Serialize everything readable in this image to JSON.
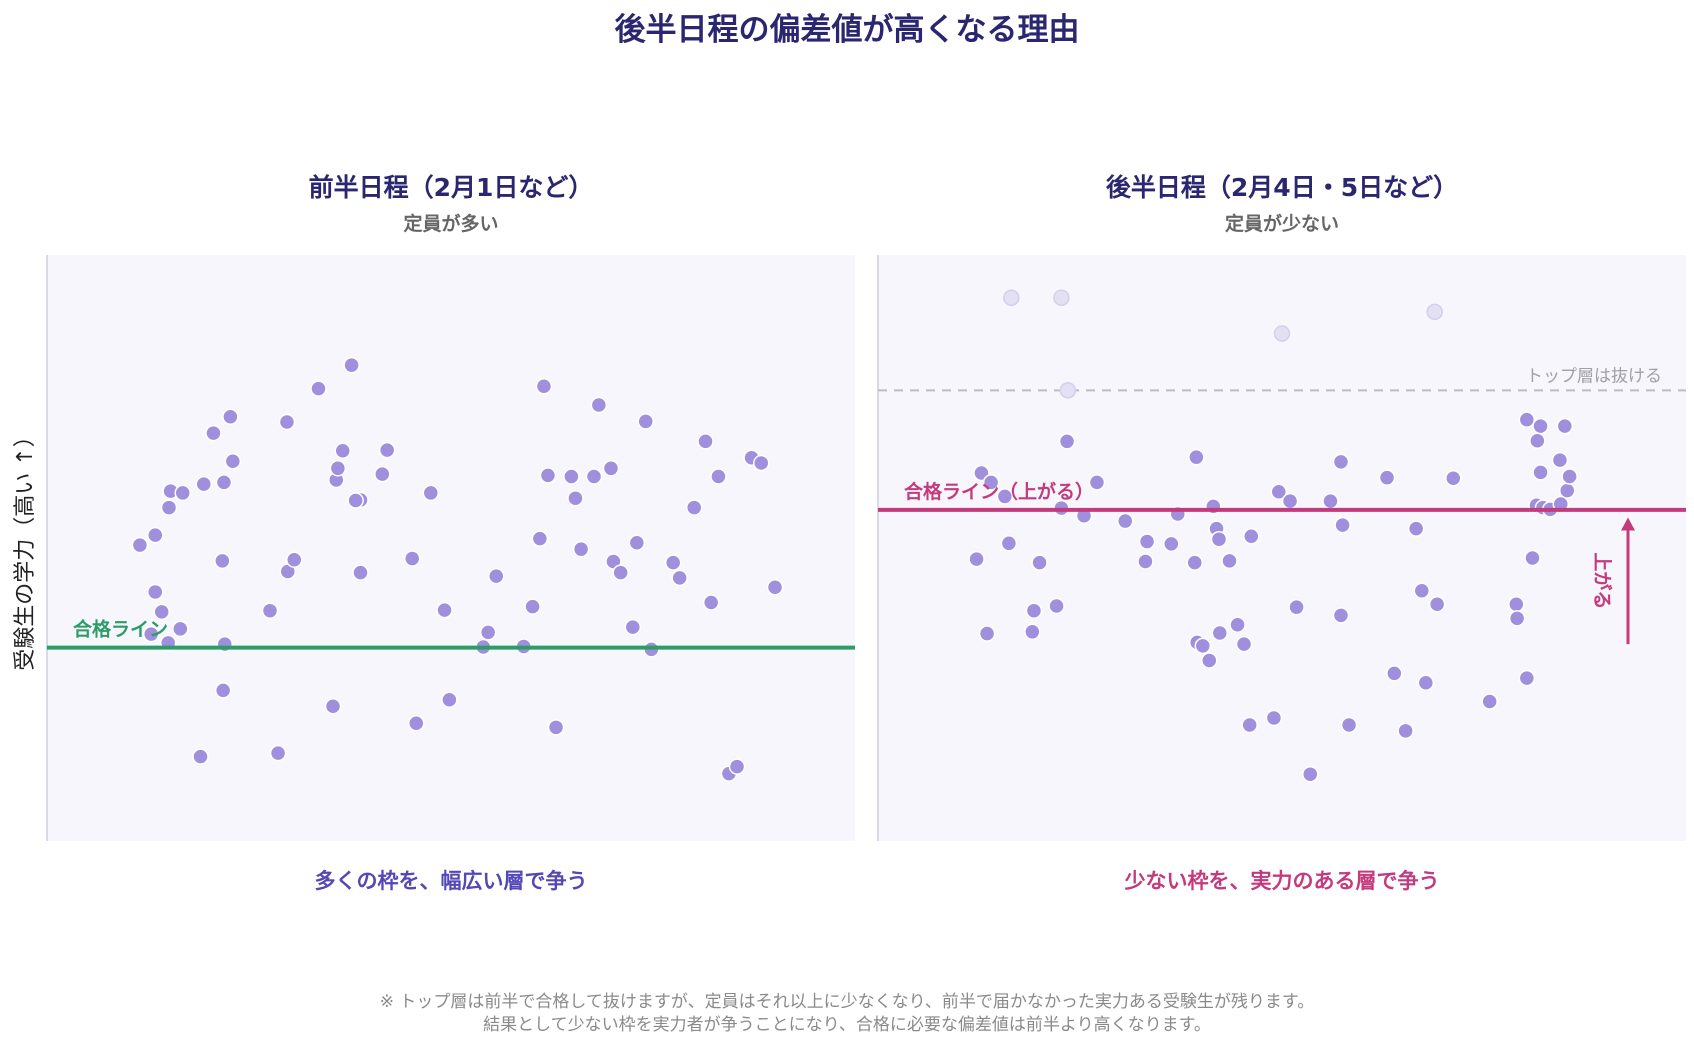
{
  "title": "後半日程の偏差値が高くなる理由",
  "ylabel": "受験生の学力（高い ↑）",
  "colors": {
    "panel_bg": "#f7f6fc",
    "dot": "#a08fdc",
    "dot_faded": "#e4e0f3",
    "pass_early": "#2e9c66",
    "pass_late": "#c43b7d",
    "caption_early": "#5447b6",
    "caption_late": "#c43b7d",
    "top_line": "#bdbdc5"
  },
  "note_lines": [
    "※ トップ層は前半で合格して抜けますが、定員はそれ以上に少なくなり、前半で届かなかった実力ある受験生が残ります。",
    "結果として少ない枠を実力者が争うことになり、合格に必要な偏差値は前半より高くなります。"
  ],
  "chart_data": [
    {
      "type": "scatter",
      "title": "前半日程（2月1日など）",
      "subtitle": "定員が多い",
      "caption": "多くの枠を、幅広い層で争う",
      "ylabel": "受験生の学力（高い ↑）",
      "xlim": [
        0,
        100
      ],
      "ylim": [
        0,
        100
      ],
      "pass_line": {
        "label": "合格ライン",
        "y": 33
      },
      "points": [
        [
          11.5,
          50.5
        ],
        [
          13.4,
          52.2
        ],
        [
          13.4,
          42.5
        ],
        [
          14.2,
          39.1
        ],
        [
          12.9,
          35.3
        ],
        [
          15.0,
          33.8
        ],
        [
          15.1,
          56.9
        ],
        [
          15.3,
          59.7
        ],
        [
          16.8,
          59.4
        ],
        [
          16.5,
          36.2
        ],
        [
          19.4,
          60.9
        ],
        [
          19.0,
          14.4
        ],
        [
          20.6,
          69.6
        ],
        [
          21.9,
          61.2
        ],
        [
          21.7,
          47.8
        ],
        [
          21.8,
          25.7
        ],
        [
          22.0,
          33.6
        ],
        [
          22.7,
          72.4
        ],
        [
          23.0,
          64.8
        ],
        [
          27.6,
          39.3
        ],
        [
          28.6,
          15.0
        ],
        [
          29.7,
          71.5
        ],
        [
          29.8,
          46.0
        ],
        [
          30.6,
          48.0
        ],
        [
          33.6,
          77.2
        ],
        [
          35.4,
          23.0
        ],
        [
          35.8,
          61.6
        ],
        [
          36.0,
          63.6
        ],
        [
          36.6,
          66.6
        ],
        [
          37.7,
          81.2
        ],
        [
          38.8,
          58.2
        ],
        [
          38.2,
          58.1
        ],
        [
          38.8,
          45.8
        ],
        [
          41.5,
          62.6
        ],
        [
          42.1,
          66.7
        ],
        [
          45.2,
          48.2
        ],
        [
          45.7,
          20.1
        ],
        [
          47.5,
          59.4
        ],
        [
          49.2,
          39.4
        ],
        [
          49.8,
          24.1
        ],
        [
          54.0,
          33.1
        ],
        [
          54.6,
          35.6
        ],
        [
          55.6,
          45.2
        ],
        [
          59.0,
          33.2
        ],
        [
          60.1,
          40.0
        ],
        [
          61.0,
          51.6
        ],
        [
          61.5,
          77.6
        ],
        [
          62.0,
          62.4
        ],
        [
          63.0,
          19.4
        ],
        [
          64.9,
          62.2
        ],
        [
          65.4,
          58.5
        ],
        [
          66.1,
          49.8
        ],
        [
          67.7,
          62.2
        ],
        [
          68.3,
          74.4
        ],
        [
          69.8,
          63.6
        ],
        [
          70.1,
          47.7
        ],
        [
          71.0,
          45.8
        ],
        [
          72.5,
          36.5
        ],
        [
          73.0,
          50.9
        ],
        [
          74.1,
          71.6
        ],
        [
          74.8,
          32.7
        ],
        [
          77.5,
          47.5
        ],
        [
          78.3,
          44.9
        ],
        [
          80.1,
          56.9
        ],
        [
          81.5,
          68.2
        ],
        [
          82.2,
          40.7
        ],
        [
          83.1,
          62.2
        ],
        [
          84.4,
          11.5
        ],
        [
          85.4,
          12.7
        ],
        [
          87.2,
          65.4
        ],
        [
          88.4,
          64.5
        ],
        [
          90.1,
          43.3
        ]
      ]
    },
    {
      "type": "scatter",
      "title": "後半日程（2月4日・5日など）",
      "subtitle": "定員が少ない",
      "caption": "少ない枠を、実力のある層で争う",
      "xlim": [
        0,
        100
      ],
      "ylim": [
        0,
        100
      ],
      "pass_line": {
        "label": "合格ライン（上がる）",
        "y": 56.5
      },
      "arrow": {
        "label": "上がる",
        "from": 33.6,
        "to": 55.2
      },
      "top_line": {
        "label": "トップ層は抜ける",
        "y": 76.9
      },
      "faded_points": [
        [
          16.5,
          92.7
        ],
        [
          22.7,
          92.7
        ],
        [
          23.5,
          76.9
        ],
        [
          50.0,
          86.6
        ],
        [
          68.9,
          90.3
        ]
      ],
      "points": [
        [
          12.2,
          48.1
        ],
        [
          12.8,
          62.8
        ],
        [
          13.5,
          35.4
        ],
        [
          14.0,
          61.2
        ],
        [
          15.7,
          58.8
        ],
        [
          16.2,
          50.8
        ],
        [
          19.1,
          35.7
        ],
        [
          19.3,
          39.3
        ],
        [
          20.0,
          47.5
        ],
        [
          22.1,
          40.1
        ],
        [
          22.7,
          56.8
        ],
        [
          23.4,
          68.2
        ],
        [
          25.5,
          55.5
        ],
        [
          27.1,
          61.2
        ],
        [
          30.6,
          54.6
        ],
        [
          33.1,
          47.7
        ],
        [
          33.3,
          51.1
        ],
        [
          36.3,
          50.7
        ],
        [
          37.1,
          55.8
        ],
        [
          39.2,
          47.5
        ],
        [
          39.5,
          33.9
        ],
        [
          39.4,
          65.5
        ],
        [
          40.2,
          33.3
        ],
        [
          41.0,
          30.8
        ],
        [
          41.5,
          57.1
        ],
        [
          41.9,
          53.3
        ],
        [
          42.2,
          51.5
        ],
        [
          42.3,
          35.5
        ],
        [
          43.5,
          47.8
        ],
        [
          44.5,
          36.9
        ],
        [
          45.3,
          33.6
        ],
        [
          46.2,
          52.0
        ],
        [
          46.0,
          19.8
        ],
        [
          49.0,
          21.0
        ],
        [
          49.6,
          59.6
        ],
        [
          51.0,
          58.0
        ],
        [
          51.8,
          39.9
        ],
        [
          53.5,
          11.4
        ],
        [
          56.0,
          58.0
        ],
        [
          57.3,
          64.7
        ],
        [
          57.5,
          53.9
        ],
        [
          57.3,
          38.5
        ],
        [
          58.3,
          19.8
        ],
        [
          63.0,
          62.0
        ],
        [
          63.9,
          28.6
        ],
        [
          65.3,
          18.8
        ],
        [
          66.6,
          53.3
        ],
        [
          67.3,
          42.7
        ],
        [
          67.8,
          27.0
        ],
        [
          69.2,
          40.4
        ],
        [
          71.2,
          61.9
        ],
        [
          75.7,
          23.8
        ],
        [
          79.0,
          40.4
        ],
        [
          79.1,
          38.0
        ],
        [
          80.3,
          27.8
        ],
        [
          81.0,
          48.3
        ],
        [
          81.5,
          57.3
        ],
        [
          82.0,
          70.8
        ],
        [
          82.0,
          62.9
        ],
        [
          82.3,
          56.9
        ],
        [
          81.6,
          68.3
        ],
        [
          83.2,
          56.6
        ],
        [
          84.4,
          65.0
        ],
        [
          84.5,
          57.5
        ],
        [
          85.3,
          59.8
        ],
        [
          85.6,
          62.2
        ],
        [
          80.3,
          71.9
        ],
        [
          85.0,
          70.8
        ]
      ]
    }
  ]
}
